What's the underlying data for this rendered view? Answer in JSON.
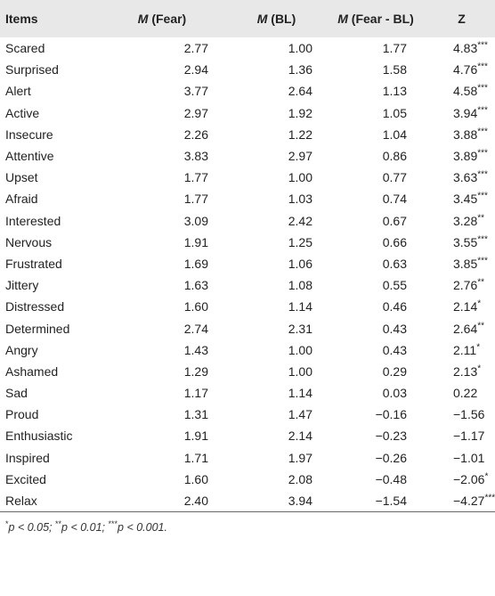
{
  "table": {
    "headers": {
      "items": "Items",
      "m_fear_italic": "M",
      "m_fear_rest": " (Fear)",
      "m_bl_italic": "M",
      "m_bl_rest": " (BL)",
      "m_diff_italic": "M",
      "m_diff_rest": " (Fear - BL)",
      "z": "Z"
    },
    "rows": [
      {
        "item": "Scared",
        "fear": "2.77",
        "bl": "1.00",
        "diff": "1.77",
        "z": "4.83",
        "sig": "***"
      },
      {
        "item": "Surprised",
        "fear": "2.94",
        "bl": "1.36",
        "diff": "1.58",
        "z": "4.76",
        "sig": "***"
      },
      {
        "item": "Alert",
        "fear": "3.77",
        "bl": "2.64",
        "diff": "1.13",
        "z": "4.58",
        "sig": "***"
      },
      {
        "item": "Active",
        "fear": "2.97",
        "bl": "1.92",
        "diff": "1.05",
        "z": "3.94",
        "sig": "***"
      },
      {
        "item": "Insecure",
        "fear": "2.26",
        "bl": "1.22",
        "diff": "1.04",
        "z": "3.88",
        "sig": "***"
      },
      {
        "item": "Attentive",
        "fear": "3.83",
        "bl": "2.97",
        "diff": "0.86",
        "z": "3.89",
        "sig": "***"
      },
      {
        "item": "Upset",
        "fear": "1.77",
        "bl": "1.00",
        "diff": "0.77",
        "z": "3.63",
        "sig": "***"
      },
      {
        "item": "Afraid",
        "fear": "1.77",
        "bl": "1.03",
        "diff": "0.74",
        "z": "3.45",
        "sig": "***"
      },
      {
        "item": "Interested",
        "fear": "3.09",
        "bl": "2.42",
        "diff": "0.67",
        "z": "3.28",
        "sig": "**"
      },
      {
        "item": "Nervous",
        "fear": "1.91",
        "bl": "1.25",
        "diff": "0.66",
        "z": "3.55",
        "sig": "***"
      },
      {
        "item": "Frustrated",
        "fear": "1.69",
        "bl": "1.06",
        "diff": "0.63",
        "z": "3.85",
        "sig": "***"
      },
      {
        "item": "Jittery",
        "fear": "1.63",
        "bl": "1.08",
        "diff": "0.55",
        "z": "2.76",
        "sig": "**"
      },
      {
        "item": "Distressed",
        "fear": "1.60",
        "bl": "1.14",
        "diff": "0.46",
        "z": "2.14",
        "sig": "*"
      },
      {
        "item": "Determined",
        "fear": "2.74",
        "bl": "2.31",
        "diff": "0.43",
        "z": "2.64",
        "sig": "**"
      },
      {
        "item": "Angry",
        "fear": "1.43",
        "bl": "1.00",
        "diff": "0.43",
        "z": "2.11",
        "sig": "*"
      },
      {
        "item": "Ashamed",
        "fear": "1.29",
        "bl": "1.00",
        "diff": "0.29",
        "z": "2.13",
        "sig": "*"
      },
      {
        "item": "Sad",
        "fear": "1.17",
        "bl": "1.14",
        "diff": "0.03",
        "z": "0.22",
        "sig": ""
      },
      {
        "item": "Proud",
        "fear": "1.31",
        "bl": "1.47",
        "diff": "−0.16",
        "z": "−1.56",
        "sig": ""
      },
      {
        "item": "Enthusiastic",
        "fear": "1.91",
        "bl": "2.14",
        "diff": "−0.23",
        "z": "−1.17",
        "sig": ""
      },
      {
        "item": "Inspired",
        "fear": "1.71",
        "bl": "1.97",
        "diff": "−0.26",
        "z": "−1.01",
        "sig": ""
      },
      {
        "item": "Excited",
        "fear": "1.60",
        "bl": "2.08",
        "diff": "−0.48",
        "z": "−2.06",
        "sig": "*"
      },
      {
        "item": "Relax",
        "fear": "2.40",
        "bl": "3.94",
        "diff": "−1.54",
        "z": "−4.27",
        "sig": "***"
      }
    ]
  },
  "footnote": {
    "s1": "*",
    "t1": "p < 0.05; ",
    "s2": "**",
    "t2": "p < 0.01; ",
    "s3": "***",
    "t3": "p < 0.001."
  }
}
